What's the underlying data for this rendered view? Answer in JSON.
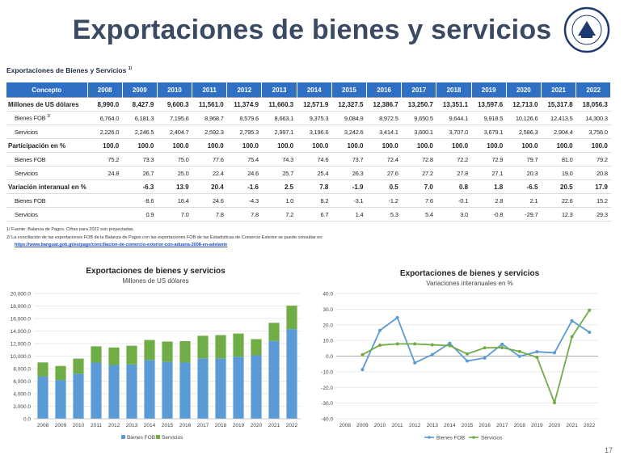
{
  "slide": {
    "title": "Exportaciones de bienes y servicios",
    "logo_text": "BANCO DE GUATEMALA",
    "page_number": "17"
  },
  "table": {
    "caption": "Exportaciones de Bienes y Servicios",
    "caption_note": "1/",
    "headers": [
      "Concepto",
      "2008",
      "2009",
      "2010",
      "2011",
      "2012",
      "2013",
      "2014",
      "2015",
      "2016",
      "2017",
      "2018",
      "2019",
      "2020",
      "2021",
      "2022"
    ],
    "rows": [
      {
        "label": "Millones de US dólares",
        "note": "",
        "kind": "group",
        "values": [
          "8,990.0",
          "8,427.9",
          "9,600.3",
          "11,561.0",
          "11,374.9",
          "11,660.3",
          "12,571.9",
          "12,327.5",
          "12,386.7",
          "13,250.7",
          "13,351.1",
          "13,597.6",
          "12,713.0",
          "15,317.8",
          "18,056.3"
        ]
      },
      {
        "label": "Bienes FOB",
        "note": "2/",
        "kind": "sub",
        "values": [
          "6,764.0",
          "6,181.3",
          "7,195.6",
          "8,968.7",
          "8,579.6",
          "8,663.1",
          "9,375.3",
          "9,084.9",
          "8,972.5",
          "9,650.5",
          "9,644.1",
          "9,918.5",
          "10,126.6",
          "12,413.5",
          "14,300.3"
        ]
      },
      {
        "label": "Servicios",
        "note": "",
        "kind": "sub",
        "values": [
          "2,226.0",
          "2,246.5",
          "2,404.7",
          "2,592.3",
          "2,795.3",
          "2,997.1",
          "3,196.6",
          "3,242.6",
          "3,414.1",
          "3,600.1",
          "3,707.0",
          "3,679.1",
          "2,586.3",
          "2,904.4",
          "3,756.0"
        ]
      },
      {
        "label": "Participación en %",
        "note": "",
        "kind": "group",
        "values": [
          "100.0",
          "100.0",
          "100.0",
          "100.0",
          "100.0",
          "100.0",
          "100.0",
          "100.0",
          "100.0",
          "100.0",
          "100.0",
          "100.0",
          "100.0",
          "100.0",
          "100.0"
        ]
      },
      {
        "label": "Bienes FOB",
        "note": "",
        "kind": "sub",
        "values": [
          "75.2",
          "73.3",
          "75.0",
          "77.6",
          "75.4",
          "74.3",
          "74.6",
          "73.7",
          "72.4",
          "72.8",
          "72.2",
          "72.9",
          "79.7",
          "81.0",
          "79.2"
        ]
      },
      {
        "label": "Servicios",
        "note": "",
        "kind": "sub",
        "values": [
          "24.8",
          "26.7",
          "25.0",
          "22.4",
          "24.6",
          "25.7",
          "25.4",
          "26.3",
          "27.6",
          "27.2",
          "27.8",
          "27.1",
          "20.3",
          "19.0",
          "20.8"
        ]
      },
      {
        "label": "Variación interanual en %",
        "note": "",
        "kind": "group",
        "values": [
          "",
          "-6.3",
          "13.9",
          "20.4",
          "-1.6",
          "2.5",
          "7.8",
          "-1.9",
          "0.5",
          "7.0",
          "0.8",
          "1.8",
          "-6.5",
          "20.5",
          "17.9"
        ]
      },
      {
        "label": "Bienes FOB",
        "note": "",
        "kind": "sub",
        "values": [
          "",
          "-8.6",
          "16.4",
          "24.6",
          "-4.3",
          "1.0",
          "8.2",
          "-3.1",
          "-1.2",
          "7.6",
          "-0.1",
          "2.8",
          "2.1",
          "22.6",
          "15.2"
        ]
      },
      {
        "label": "Servicios",
        "note": "",
        "kind": "sub",
        "values": [
          "",
          "0.9",
          "7.0",
          "7.8",
          "7.8",
          "7.2",
          "6.7",
          "1.4",
          "5.3",
          "5.4",
          "3.0",
          "-0.8",
          "-29.7",
          "12.3",
          "29.3"
        ]
      }
    ]
  },
  "notes": {
    "note1": "1/  Fuente: Balanza de Pagos. Cifras para 2022 son proyectadas.",
    "note2": "2/  La conciliación de las exportaciones FOB de la Balanza de Pagos con las exportaciones FOB de las Estadísticas de Comercio Exterior se puede consultar en:",
    "link": "https://www.banguat.gob.gt/es/page/conciliacion-de-comercio-exterior-con-aduana-2008-en-adelante"
  },
  "chart_data": [
    {
      "type": "bar",
      "stacked": true,
      "title": "Exportaciones de bienes y servicios",
      "subtitle": "Millones de US dólares",
      "categories": [
        "2008",
        "2009",
        "2010",
        "2011",
        "2012",
        "2013",
        "2014",
        "2015",
        "2016",
        "2017",
        "2018",
        "2019",
        "2020",
        "2021",
        "2022"
      ],
      "series": [
        {
          "name": "Bienes FOB",
          "color": "#5b9bd5",
          "values": [
            6764.0,
            6181.3,
            7195.6,
            8968.7,
            8579.6,
            8663.1,
            9375.3,
            9084.9,
            8972.5,
            9650.5,
            9644.1,
            9918.5,
            10126.6,
            12413.5,
            14300.3
          ]
        },
        {
          "name": "Servicios",
          "color": "#70ad47",
          "values": [
            2226.0,
            2246.5,
            2404.7,
            2592.3,
            2795.3,
            2997.1,
            3196.6,
            3242.6,
            3414.1,
            3600.1,
            3707.0,
            3679.1,
            2586.3,
            2904.4,
            3756.0
          ]
        }
      ],
      "ylim": [
        0,
        20000
      ],
      "yticks": [
        "0.0",
        "2,000.0",
        "4,000.0",
        "6,000.0",
        "8,000.0",
        "10,000.0",
        "12,000.0",
        "14,000.0",
        "16,000.0",
        "18,000.0",
        "20,000.0"
      ],
      "legend": "bottom",
      "grid": true
    },
    {
      "type": "line",
      "title": "Exportaciones de bienes y servicios",
      "subtitle": "Variaciones interanuales en %",
      "categories": [
        "2008",
        "2009",
        "2010",
        "2011",
        "2012",
        "2013",
        "2014",
        "2015",
        "2016",
        "2017",
        "2018",
        "2019",
        "2020",
        "2021",
        "2022"
      ],
      "series": [
        {
          "name": "Bienes FOB",
          "color": "#5b9bd5",
          "values": [
            null,
            -8.6,
            16.4,
            24.6,
            -4.3,
            1.0,
            8.2,
            -3.1,
            -1.2,
            7.6,
            -0.1,
            2.8,
            2.1,
            22.6,
            15.2
          ]
        },
        {
          "name": "Servicios",
          "color": "#70ad47",
          "values": [
            null,
            0.9,
            7.0,
            7.8,
            7.8,
            7.2,
            6.7,
            1.4,
            5.3,
            5.4,
            3.0,
            -0.8,
            -29.7,
            12.3,
            29.3
          ]
        }
      ],
      "ylim": [
        -40,
        40
      ],
      "yticks": [
        "40.0",
        "30.0",
        "20.0",
        "10.0",
        "0.0",
        "-10.0",
        "-20.0",
        "-30.0",
        "-40.0"
      ],
      "legend": "bottom",
      "grid": true
    }
  ]
}
